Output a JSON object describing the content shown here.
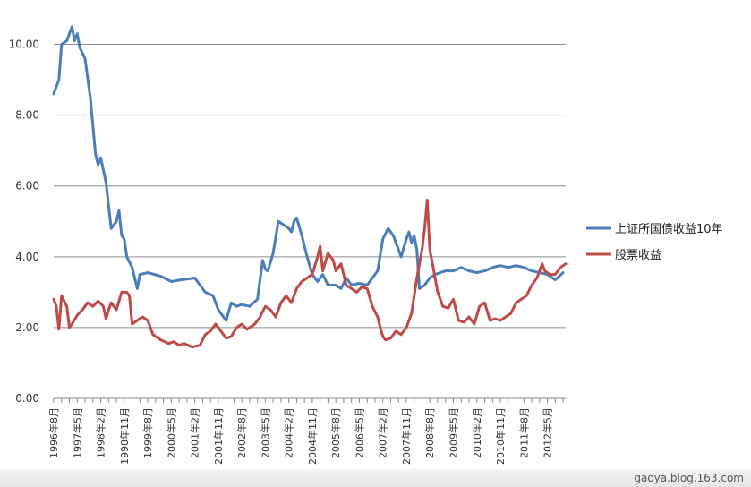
{
  "chart_data": {
    "type": "line",
    "title": "",
    "xlabel": "",
    "ylabel": "",
    "ylim": [
      0,
      11
    ],
    "y_ticks": [
      "0.00",
      "2.00",
      "4.00",
      "6.00",
      "8.00",
      "10.00"
    ],
    "grid": true,
    "legend_position": "right",
    "x_tick_labels": [
      "1996年8月",
      "1997年5月",
      "1998年2月",
      "1998年11月",
      "1999年8月",
      "2000年5月",
      "2001年2月",
      "2001年11月",
      "2002年8月",
      "2003年5月",
      "2004年2月",
      "2004年11月",
      "2005年8月",
      "2006年5月",
      "2007年2月",
      "2007年11月",
      "2008年8月",
      "2009年5月",
      "2010年2月",
      "2010年11月",
      "2011年8月",
      "2012年5月"
    ],
    "x_start": "1996-08",
    "x_end": "2012-12",
    "series": [
      {
        "name": "上证所国债收益10年",
        "color": "#4a7ebb",
        "points": [
          [
            "1996-08",
            8.6
          ],
          [
            "1996-10",
            9.0
          ],
          [
            "1996-11",
            10.0
          ],
          [
            "1997-01",
            10.1
          ],
          [
            "1997-03",
            10.5
          ],
          [
            "1997-04",
            10.1
          ],
          [
            "1997-05",
            10.3
          ],
          [
            "1997-06",
            9.9
          ],
          [
            "1997-08",
            9.6
          ],
          [
            "1997-10",
            8.5
          ],
          [
            "1997-12",
            6.9
          ],
          [
            "1998-01",
            6.6
          ],
          [
            "1998-02",
            6.8
          ],
          [
            "1998-04",
            6.1
          ],
          [
            "1998-06",
            4.8
          ],
          [
            "1998-08",
            5.0
          ],
          [
            "1998-09",
            5.3
          ],
          [
            "1998-10",
            4.6
          ],
          [
            "1998-11",
            4.5
          ],
          [
            "1998-12",
            4.0
          ],
          [
            "1999-02",
            3.7
          ],
          [
            "1999-04",
            3.1
          ],
          [
            "1999-05",
            3.5
          ],
          [
            "1999-08",
            3.55
          ],
          [
            "2000-01",
            3.45
          ],
          [
            "2000-05",
            3.3
          ],
          [
            "2000-09",
            3.35
          ],
          [
            "2001-02",
            3.4
          ],
          [
            "2001-06",
            3.0
          ],
          [
            "2001-09",
            2.9
          ],
          [
            "2001-11",
            2.5
          ],
          [
            "2002-02",
            2.2
          ],
          [
            "2002-04",
            2.7
          ],
          [
            "2002-06",
            2.6
          ],
          [
            "2002-08",
            2.65
          ],
          [
            "2002-11",
            2.6
          ],
          [
            "2003-02",
            2.8
          ],
          [
            "2003-04",
            3.9
          ],
          [
            "2003-05",
            3.65
          ],
          [
            "2003-06",
            3.6
          ],
          [
            "2003-08",
            4.1
          ],
          [
            "2003-10",
            5.0
          ],
          [
            "2003-12",
            4.9
          ],
          [
            "2004-02",
            4.8
          ],
          [
            "2004-03",
            4.7
          ],
          [
            "2004-04",
            5.0
          ],
          [
            "2004-05",
            5.1
          ],
          [
            "2004-07",
            4.6
          ],
          [
            "2004-09",
            4.0
          ],
          [
            "2004-11",
            3.5
          ],
          [
            "2005-01",
            3.3
          ],
          [
            "2005-03",
            3.5
          ],
          [
            "2005-05",
            3.2
          ],
          [
            "2005-08",
            3.2
          ],
          [
            "2005-10",
            3.1
          ],
          [
            "2005-12",
            3.4
          ],
          [
            "2006-02",
            3.2
          ],
          [
            "2006-05",
            3.25
          ],
          [
            "2006-08",
            3.2
          ],
          [
            "2006-10",
            3.4
          ],
          [
            "2006-12",
            3.6
          ],
          [
            "2007-02",
            4.5
          ],
          [
            "2007-04",
            4.8
          ],
          [
            "2007-06",
            4.6
          ],
          [
            "2007-08",
            4.2
          ],
          [
            "2007-09",
            4.0
          ],
          [
            "2007-11",
            4.5
          ],
          [
            "2007-12",
            4.7
          ],
          [
            "2008-01",
            4.4
          ],
          [
            "2008-02",
            4.6
          ],
          [
            "2008-03",
            4.2
          ],
          [
            "2008-04",
            3.1
          ],
          [
            "2008-06",
            3.2
          ],
          [
            "2008-08",
            3.4
          ],
          [
            "2008-10",
            3.5
          ],
          [
            "2009-02",
            3.6
          ],
          [
            "2009-05",
            3.6
          ],
          [
            "2009-08",
            3.7
          ],
          [
            "2009-11",
            3.6
          ],
          [
            "2010-02",
            3.55
          ],
          [
            "2010-05",
            3.6
          ],
          [
            "2010-08",
            3.7
          ],
          [
            "2010-11",
            3.75
          ],
          [
            "2011-02",
            3.7
          ],
          [
            "2011-05",
            3.75
          ],
          [
            "2011-08",
            3.7
          ],
          [
            "2011-11",
            3.6
          ],
          [
            "2012-02",
            3.55
          ],
          [
            "2012-05",
            3.5
          ],
          [
            "2012-08",
            3.35
          ],
          [
            "2012-11",
            3.55
          ]
        ]
      },
      {
        "name": "股票收益",
        "color": "#be4b48",
        "points": [
          [
            "1996-08",
            2.8
          ],
          [
            "1996-09",
            2.6
          ],
          [
            "1996-10",
            1.95
          ],
          [
            "1996-11",
            2.9
          ],
          [
            "1997-01",
            2.6
          ],
          [
            "1997-02",
            2.0
          ],
          [
            "1997-03",
            2.1
          ],
          [
            "1997-05",
            2.35
          ],
          [
            "1997-07",
            2.5
          ],
          [
            "1997-09",
            2.7
          ],
          [
            "1997-11",
            2.6
          ],
          [
            "1998-01",
            2.75
          ],
          [
            "1998-03",
            2.6
          ],
          [
            "1998-04",
            2.25
          ],
          [
            "1998-05",
            2.5
          ],
          [
            "1998-06",
            2.7
          ],
          [
            "1998-08",
            2.5
          ],
          [
            "1998-10",
            3.0
          ],
          [
            "1998-12",
            3.0
          ],
          [
            "1999-01",
            2.9
          ],
          [
            "1999-02",
            2.1
          ],
          [
            "1999-04",
            2.2
          ],
          [
            "1999-06",
            2.3
          ],
          [
            "1999-08",
            2.2
          ],
          [
            "1999-10",
            1.8
          ],
          [
            "2000-01",
            1.65
          ],
          [
            "2000-04",
            1.55
          ],
          [
            "2000-06",
            1.6
          ],
          [
            "2000-08",
            1.5
          ],
          [
            "2000-10",
            1.55
          ],
          [
            "2001-01",
            1.45
          ],
          [
            "2001-04",
            1.5
          ],
          [
            "2001-06",
            1.8
          ],
          [
            "2001-08",
            1.9
          ],
          [
            "2001-10",
            2.1
          ],
          [
            "2001-12",
            1.9
          ],
          [
            "2002-02",
            1.7
          ],
          [
            "2002-04",
            1.75
          ],
          [
            "2002-06",
            2.0
          ],
          [
            "2002-08",
            2.1
          ],
          [
            "2002-10",
            1.95
          ],
          [
            "2003-01",
            2.1
          ],
          [
            "2003-03",
            2.3
          ],
          [
            "2003-05",
            2.6
          ],
          [
            "2003-07",
            2.5
          ],
          [
            "2003-09",
            2.3
          ],
          [
            "2003-11",
            2.7
          ],
          [
            "2004-01",
            2.9
          ],
          [
            "2004-03",
            2.7
          ],
          [
            "2004-05",
            3.1
          ],
          [
            "2004-07",
            3.3
          ],
          [
            "2004-09",
            3.4
          ],
          [
            "2004-11",
            3.5
          ],
          [
            "2005-01",
            4.0
          ],
          [
            "2005-02",
            4.3
          ],
          [
            "2005-03",
            3.6
          ],
          [
            "2005-05",
            4.1
          ],
          [
            "2005-07",
            3.9
          ],
          [
            "2005-08",
            3.6
          ],
          [
            "2005-10",
            3.8
          ],
          [
            "2005-12",
            3.2
          ],
          [
            "2006-02",
            3.1
          ],
          [
            "2006-04",
            3.0
          ],
          [
            "2006-06",
            3.15
          ],
          [
            "2006-08",
            3.1
          ],
          [
            "2006-10",
            2.6
          ],
          [
            "2006-12",
            2.3
          ],
          [
            "2007-01",
            2.0
          ],
          [
            "2007-02",
            1.75
          ],
          [
            "2007-03",
            1.65
          ],
          [
            "2007-05",
            1.7
          ],
          [
            "2007-07",
            1.9
          ],
          [
            "2007-09",
            1.8
          ],
          [
            "2007-11",
            2.0
          ],
          [
            "2008-01",
            2.4
          ],
          [
            "2008-03",
            3.4
          ],
          [
            "2008-05",
            4.2
          ],
          [
            "2008-06",
            4.8
          ],
          [
            "2008-07",
            5.6
          ],
          [
            "2008-08",
            4.2
          ],
          [
            "2008-09",
            3.8
          ],
          [
            "2008-11",
            3.0
          ],
          [
            "2009-01",
            2.6
          ],
          [
            "2009-03",
            2.55
          ],
          [
            "2009-05",
            2.8
          ],
          [
            "2009-07",
            2.2
          ],
          [
            "2009-09",
            2.15
          ],
          [
            "2009-11",
            2.3
          ],
          [
            "2010-01",
            2.1
          ],
          [
            "2010-03",
            2.6
          ],
          [
            "2010-05",
            2.7
          ],
          [
            "2010-07",
            2.2
          ],
          [
            "2010-09",
            2.25
          ],
          [
            "2010-11",
            2.2
          ],
          [
            "2011-01",
            2.3
          ],
          [
            "2011-03",
            2.4
          ],
          [
            "2011-05",
            2.7
          ],
          [
            "2011-07",
            2.8
          ],
          [
            "2011-09",
            2.9
          ],
          [
            "2011-11",
            3.2
          ],
          [
            "2012-01",
            3.4
          ],
          [
            "2012-03",
            3.8
          ],
          [
            "2012-04",
            3.6
          ],
          [
            "2012-06",
            3.5
          ],
          [
            "2012-08",
            3.5
          ],
          [
            "2012-10",
            3.7
          ],
          [
            "2012-12",
            3.8
          ]
        ]
      }
    ]
  },
  "watermark": "gaoya.blog.163.com"
}
